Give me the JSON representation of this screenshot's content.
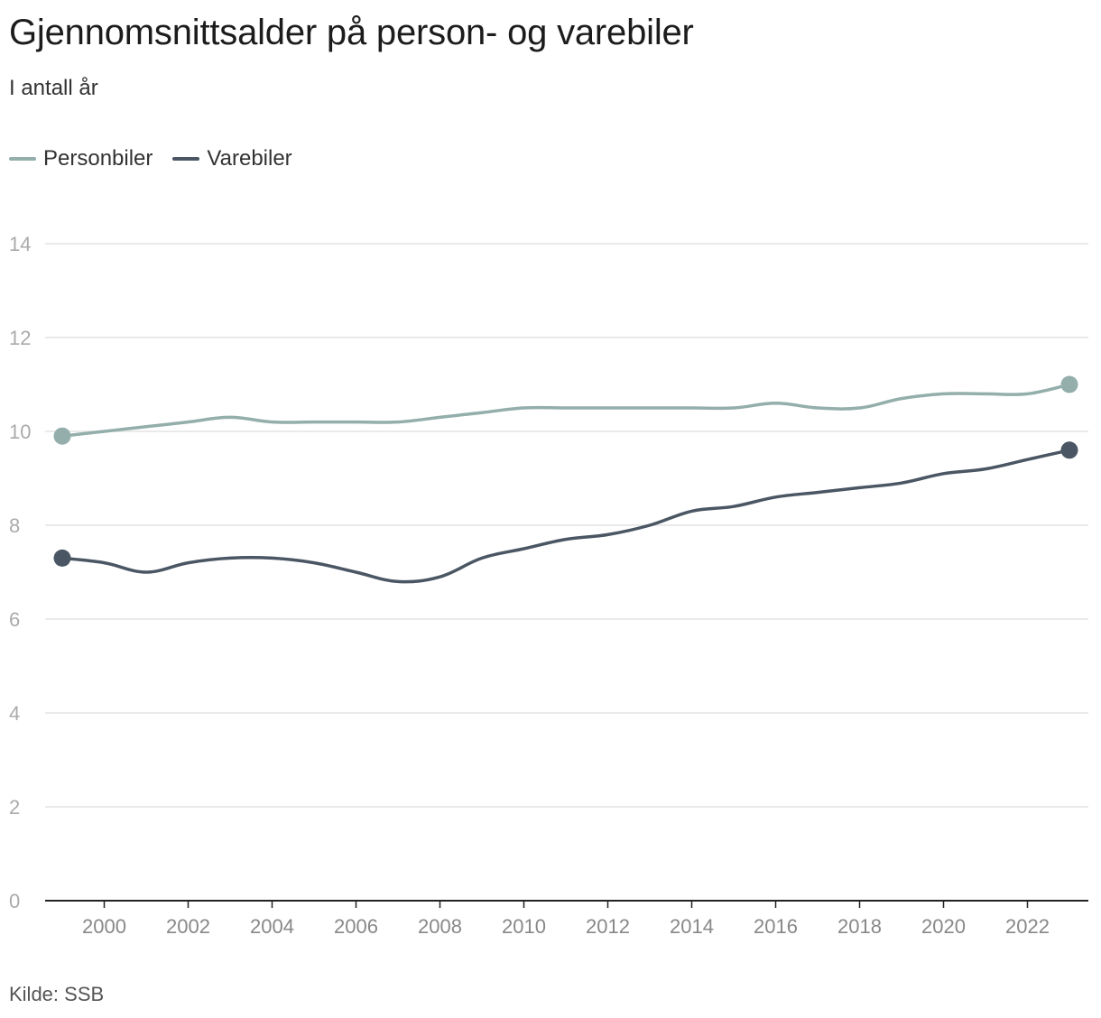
{
  "title": "Gjennomsnittsalder på person- og varebiler",
  "subtitle": "I antall år",
  "source": "Kilde: SSB",
  "colors": {
    "Personbiler": "#93aeab",
    "Varebiler": "#4a5663",
    "grid": "#e3e3e3",
    "axis": "#222222",
    "tick": "#aaaaaa"
  },
  "chart_data": {
    "type": "line",
    "title": "Gjennomsnittsalder på person- og varebiler",
    "subtitle": "I antall år",
    "xlabel": "",
    "ylabel": "",
    "ylim": [
      0,
      14
    ],
    "xlim": [
      1999,
      2023
    ],
    "yticks": [
      0,
      2,
      4,
      6,
      8,
      10,
      12,
      14
    ],
    "xticks": [
      2000,
      2002,
      2004,
      2006,
      2008,
      2010,
      2012,
      2014,
      2016,
      2018,
      2020,
      2022
    ],
    "grid": true,
    "legend": "top-left",
    "x": [
      1999,
      2000,
      2001,
      2002,
      2003,
      2004,
      2005,
      2006,
      2007,
      2008,
      2009,
      2010,
      2011,
      2012,
      2013,
      2014,
      2015,
      2016,
      2017,
      2018,
      2019,
      2020,
      2021,
      2022,
      2023
    ],
    "series": [
      {
        "name": "Personbiler",
        "values": [
          9.9,
          10.0,
          10.1,
          10.2,
          10.3,
          10.2,
          10.2,
          10.2,
          10.2,
          10.3,
          10.4,
          10.5,
          10.5,
          10.5,
          10.5,
          10.5,
          10.5,
          10.6,
          10.5,
          10.5,
          10.7,
          10.8,
          10.8,
          10.8,
          11.0
        ]
      },
      {
        "name": "Varebiler",
        "values": [
          7.3,
          7.2,
          7.0,
          7.2,
          7.3,
          7.3,
          7.2,
          7.0,
          6.8,
          6.9,
          7.3,
          7.5,
          7.7,
          7.8,
          8.0,
          8.3,
          8.4,
          8.6,
          8.7,
          8.8,
          8.9,
          9.1,
          9.2,
          9.4,
          9.6
        ]
      }
    ]
  }
}
